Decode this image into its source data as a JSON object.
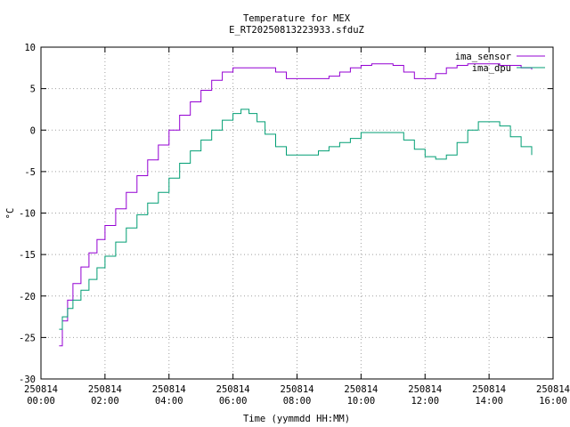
{
  "chart_data": {
    "type": "line",
    "title": "Temperature for MEX",
    "subtitle": "E_RT20250813223933.sfduZ",
    "xlabel": "Time (yymmdd HH:MM)",
    "ylabel": "°C",
    "xlim": [
      "2025-08-14 00:00",
      "2025-08-14 16:00"
    ],
    "ylim": [
      -30,
      10
    ],
    "x_ticks": [
      {
        "date": "250814",
        "time": "00:00",
        "h": 0
      },
      {
        "date": "250814",
        "time": "02:00",
        "h": 2
      },
      {
        "date": "250814",
        "time": "04:00",
        "h": 4
      },
      {
        "date": "250814",
        "time": "06:00",
        "h": 6
      },
      {
        "date": "250814",
        "time": "08:00",
        "h": 8
      },
      {
        "date": "250814",
        "time": "10:00",
        "h": 10
      },
      {
        "date": "250814",
        "time": "12:00",
        "h": 12
      },
      {
        "date": "250814",
        "time": "14:00",
        "h": 14
      },
      {
        "date": "250814",
        "time": "16:00",
        "h": 16
      }
    ],
    "y_ticks": [
      10,
      5,
      0,
      -5,
      -10,
      -15,
      -20,
      -25,
      -30
    ],
    "grid": true,
    "legend_position": "top-right",
    "series": [
      {
        "name": "ima_sensor",
        "color": "#9400d3",
        "x": [
          "00:34",
          "00:40",
          "00:50",
          "01:00",
          "01:15",
          "01:30",
          "01:45",
          "02:00",
          "02:20",
          "02:40",
          "03:00",
          "03:20",
          "03:40",
          "04:00",
          "04:20",
          "04:40",
          "05:00",
          "05:20",
          "05:40",
          "06:00",
          "06:15",
          "06:30",
          "07:00",
          "07:20",
          "07:40",
          "08:00",
          "08:30",
          "09:00",
          "09:20",
          "09:40",
          "10:00",
          "10:20",
          "10:40",
          "11:00",
          "11:20",
          "11:40",
          "12:00",
          "12:20",
          "12:40",
          "13:00",
          "13:20",
          "13:40",
          "14:00",
          "14:20",
          "14:40",
          "15:00",
          "15:20"
        ],
        "y": [
          -26.0,
          -23.0,
          -20.5,
          -18.5,
          -16.5,
          -14.8,
          -13.2,
          -11.5,
          -9.5,
          -7.5,
          -5.5,
          -3.6,
          -1.8,
          0.0,
          1.8,
          3.4,
          4.8,
          6.0,
          7.0,
          7.5,
          7.5,
          7.5,
          7.5,
          7.0,
          6.2,
          6.2,
          6.2,
          6.5,
          7.0,
          7.5,
          7.8,
          8.0,
          8.0,
          7.8,
          7.0,
          6.2,
          6.2,
          6.8,
          7.5,
          7.8,
          8.0,
          8.0,
          8.0,
          7.8,
          7.8,
          7.5,
          7.3
        ]
      },
      {
        "name": "ima_dpu",
        "color": "#009e73",
        "x": [
          "00:34",
          "00:40",
          "00:50",
          "01:00",
          "01:15",
          "01:30",
          "01:45",
          "02:00",
          "02:20",
          "02:40",
          "03:00",
          "03:20",
          "03:40",
          "04:00",
          "04:20",
          "04:40",
          "05:00",
          "05:20",
          "05:40",
          "06:00",
          "06:15",
          "06:30",
          "06:45",
          "07:00",
          "07:20",
          "07:40",
          "08:00",
          "08:20",
          "08:40",
          "09:00",
          "09:20",
          "09:40",
          "10:00",
          "10:20",
          "10:40",
          "11:00",
          "11:20",
          "11:40",
          "12:00",
          "12:20",
          "12:40",
          "13:00",
          "13:20",
          "13:40",
          "14:00",
          "14:20",
          "14:40",
          "15:00",
          "15:20"
        ],
        "y": [
          -24.0,
          -22.5,
          -21.5,
          -20.5,
          -19.3,
          -18.0,
          -16.6,
          -15.2,
          -13.5,
          -11.8,
          -10.2,
          -8.8,
          -7.5,
          -5.8,
          -4.0,
          -2.5,
          -1.2,
          0.0,
          1.2,
          2.0,
          2.5,
          2.0,
          1.0,
          -0.5,
          -2.0,
          -3.0,
          -3.0,
          -3.0,
          -2.5,
          -2.0,
          -1.5,
          -1.0,
          -0.3,
          -0.3,
          -0.3,
          -0.3,
          -1.2,
          -2.3,
          -3.2,
          -3.5,
          -3.0,
          -1.5,
          0.0,
          1.0,
          1.0,
          0.5,
          -0.8,
          -2.0,
          -3.0
        ]
      }
    ]
  }
}
